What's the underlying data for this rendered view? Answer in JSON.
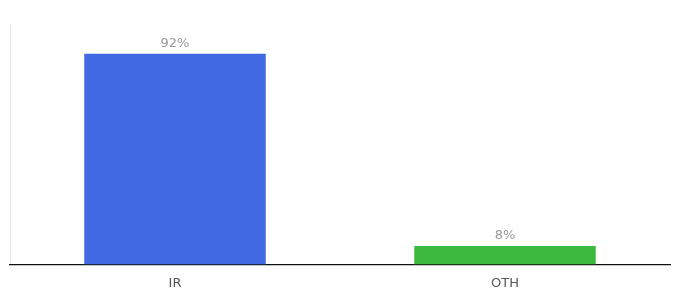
{
  "chart_data": {
    "type": "bar",
    "categories": [
      "IR",
      "OTH"
    ],
    "values": [
      92,
      8
    ],
    "value_labels": [
      "92%",
      "8%"
    ],
    "colors": [
      "#4169e1",
      "#3dba3d"
    ],
    "ylim": [
      0,
      105
    ],
    "grid": false,
    "data_labels": true,
    "tick_labels": "x"
  }
}
